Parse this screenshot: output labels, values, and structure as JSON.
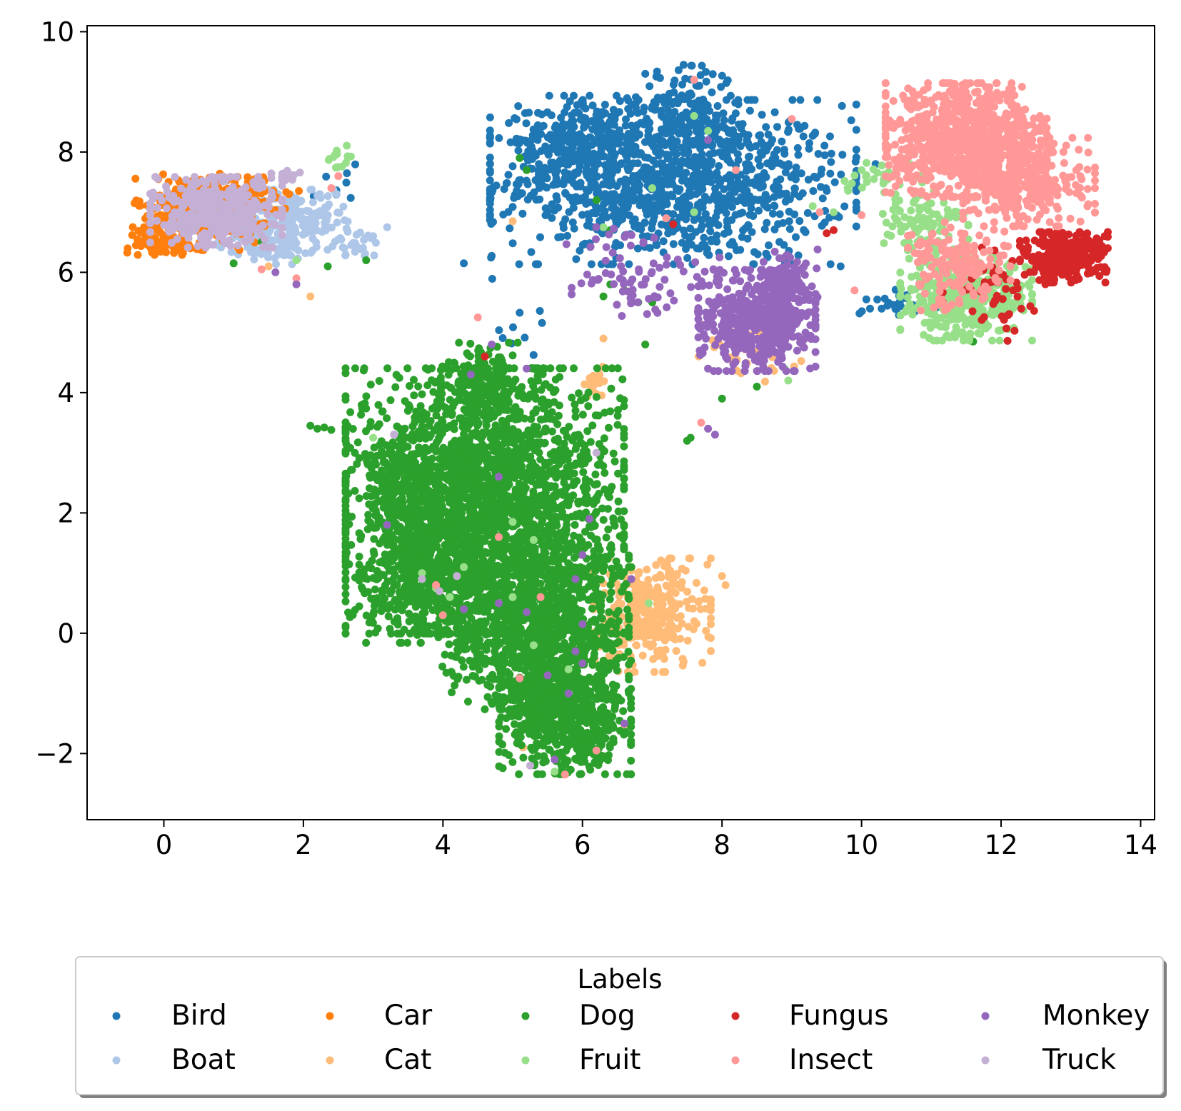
{
  "chart_data": {
    "type": "scatter",
    "title": "",
    "xlabel": "",
    "ylabel": "",
    "xlim": [
      -1.1,
      14.2
    ],
    "ylim": [
      -3.1,
      10.1
    ],
    "xticks": [
      0,
      2,
      4,
      6,
      8,
      10,
      12,
      14
    ],
    "yticks": [
      -2,
      0,
      2,
      4,
      6,
      8,
      10
    ],
    "xtick_labels": [
      "0",
      "2",
      "4",
      "6",
      "8",
      "10",
      "12",
      "14"
    ],
    "ytick_labels": [
      "−2",
      "0",
      "2",
      "4",
      "6",
      "8",
      "10"
    ],
    "grid": false,
    "legend": {
      "title": "Labels",
      "placement": "below plot, centered",
      "columns": 5,
      "entries": [
        "Bird",
        "Boat",
        "Car",
        "Cat",
        "Dog",
        "Fruit",
        "Fungus",
        "Insect",
        "Monkey",
        "Truck"
      ]
    },
    "series": [
      {
        "name": "Bird",
        "color": "#1f77b4",
        "clusters": [
          {
            "cx": 7.3,
            "cy": 7.5,
            "sx": 1.25,
            "sy": 0.65,
            "n": 1100
          },
          {
            "cx": 6.0,
            "cy": 8.2,
            "sx": 0.45,
            "sy": 0.35,
            "n": 250
          },
          {
            "cx": 7.5,
            "cy": 8.7,
            "sx": 0.35,
            "sy": 0.35,
            "n": 150
          },
          {
            "cx": 10.6,
            "cy": 5.5,
            "sx": 0.3,
            "sy": 0.1,
            "n": 25
          },
          {
            "cx": 5.0,
            "cy": 5.2,
            "sx": 0.2,
            "sy": 0.5,
            "n": 10
          },
          {
            "cx": 2.4,
            "cy": 7.4,
            "sx": 0.2,
            "sy": 0.3,
            "n": 8
          }
        ],
        "points": [
          [
            4.3,
            6.15
          ],
          [
            10.9,
            7.75
          ],
          [
            10.2,
            7.8
          ],
          [
            9.7,
            6.1
          ],
          [
            6.9,
            9.3
          ],
          [
            7.45,
            9.45
          ]
        ]
      },
      {
        "name": "Boat",
        "color": "#aec7e8",
        "clusters": [
          {
            "cx": 1.9,
            "cy": 6.85,
            "sx": 0.35,
            "sy": 0.25,
            "n": 180
          },
          {
            "cx": 1.4,
            "cy": 6.45,
            "sx": 0.3,
            "sy": 0.15,
            "n": 60
          },
          {
            "cx": 2.8,
            "cy": 6.45,
            "sx": 0.15,
            "sy": 0.1,
            "n": 25
          }
        ],
        "points": [
          [
            3.2,
            6.75
          ],
          [
            3.0,
            6.6
          ]
        ]
      },
      {
        "name": "Car",
        "color": "#ff7f0e",
        "clusters": [
          {
            "cx": 0.5,
            "cy": 7.0,
            "sx": 0.45,
            "sy": 0.3,
            "n": 300
          },
          {
            "cx": 0.0,
            "cy": 6.5,
            "sx": 0.25,
            "sy": 0.1,
            "n": 60
          },
          {
            "cx": 1.2,
            "cy": 7.35,
            "sx": 0.35,
            "sy": 0.15,
            "n": 60
          }
        ],
        "points": []
      },
      {
        "name": "Cat",
        "color": "#ffbb78",
        "clusters": [
          {
            "cx": 7.0,
            "cy": 0.3,
            "sx": 0.4,
            "sy": 0.45,
            "n": 300
          },
          {
            "cx": 6.2,
            "cy": 4.2,
            "sx": 0.12,
            "sy": 0.15,
            "n": 15
          },
          {
            "cx": 8.4,
            "cy": 4.7,
            "sx": 0.35,
            "sy": 0.25,
            "n": 40
          }
        ],
        "points": [
          [
            8.05,
            0.8
          ],
          [
            8.0,
            0.95
          ],
          [
            6.6,
            -1.55
          ],
          [
            5.15,
            -1.9
          ],
          [
            2.1,
            5.6
          ],
          [
            1.5,
            6.1
          ],
          [
            6.3,
            4.9
          ],
          [
            5.0,
            6.85
          ]
        ]
      },
      {
        "name": "Dog",
        "color": "#2ca02c",
        "clusters": [
          {
            "cx": 4.6,
            "cy": 2.2,
            "sx": 0.95,
            "sy": 1.05,
            "n": 2400
          },
          {
            "cx": 5.3,
            "cy": 0.1,
            "sx": 0.65,
            "sy": 0.65,
            "n": 1000
          },
          {
            "cx": 5.75,
            "cy": -1.4,
            "sx": 0.45,
            "sy": 0.45,
            "n": 650
          },
          {
            "cx": 3.85,
            "cy": 1.1,
            "sx": 0.5,
            "sy": 0.6,
            "n": 500
          },
          {
            "cx": 4.6,
            "cy": 4.2,
            "sx": 0.3,
            "sy": 0.3,
            "n": 150
          },
          {
            "cx": 3.5,
            "cy": 2.6,
            "sx": 0.25,
            "sy": 0.4,
            "n": 120
          }
        ],
        "points": [
          [
            2.1,
            3.45
          ],
          [
            2.3,
            3.42
          ],
          [
            2.2,
            3.4
          ],
          [
            2.4,
            3.38
          ],
          [
            7.5,
            3.2
          ],
          [
            7.55,
            3.25
          ],
          [
            8.0,
            3.9
          ],
          [
            8.5,
            4.1
          ],
          [
            6.3,
            5.6
          ],
          [
            6.6,
            5.7
          ],
          [
            6.4,
            5.8
          ],
          [
            6.8,
            5.5
          ],
          [
            7.0,
            5.5
          ],
          [
            5.1,
            7.9
          ],
          [
            5.2,
            7.7
          ],
          [
            6.2,
            7.2
          ],
          [
            6.4,
            6.7
          ],
          [
            1.0,
            6.15
          ],
          [
            2.9,
            6.2
          ],
          [
            2.35,
            6.1
          ],
          [
            11.6,
            4.85
          ],
          [
            4.8,
            4.5
          ],
          [
            6.9,
            4.8
          ],
          [
            6.7,
            1.1
          ],
          [
            6.5,
            1.1
          ],
          [
            1.4,
            6.5
          ]
        ]
      },
      {
        "name": "Fruit",
        "color": "#98df8a",
        "clusters": [
          {
            "cx": 11.5,
            "cy": 5.6,
            "sx": 0.45,
            "sy": 0.35,
            "n": 400
          },
          {
            "cx": 10.9,
            "cy": 6.8,
            "sx": 0.3,
            "sy": 0.3,
            "n": 100
          },
          {
            "cx": 10.3,
            "cy": 7.6,
            "sx": 0.35,
            "sy": 0.15,
            "n": 35
          },
          {
            "cx": 2.5,
            "cy": 7.9,
            "sx": 0.1,
            "sy": 0.1,
            "n": 15
          }
        ],
        "points": [
          [
            9.3,
            7.1
          ],
          [
            9.6,
            7.0
          ],
          [
            9.8,
            7.4
          ],
          [
            8.9,
            4.4
          ],
          [
            8.95,
            4.2
          ],
          [
            7.0,
            7.4
          ],
          [
            7.6,
            8.6
          ],
          [
            7.8,
            8.35
          ],
          [
            7.6,
            7.0
          ],
          [
            6.3,
            6.75
          ],
          [
            5.3,
            1.55
          ],
          [
            5.0,
            1.85
          ],
          [
            4.3,
            1.1
          ],
          [
            3.7,
            1.0
          ],
          [
            4.1,
            0.6
          ],
          [
            5.3,
            -0.2
          ],
          [
            5.6,
            -2.3
          ],
          [
            5.8,
            -0.6
          ],
          [
            6.95,
            0.5
          ],
          [
            5.0,
            0.6
          ],
          [
            1.9,
            6.2
          ],
          [
            3.0,
            3.25
          ],
          [
            3.9,
            0.75
          ]
        ]
      },
      {
        "name": "Fungus",
        "color": "#d62728",
        "clusters": [
          {
            "cx": 12.9,
            "cy": 6.25,
            "sx": 0.3,
            "sy": 0.2,
            "n": 300
          },
          {
            "cx": 11.9,
            "cy": 5.6,
            "sx": 0.35,
            "sy": 0.4,
            "n": 50
          }
        ],
        "points": [
          [
            4.6,
            4.6
          ],
          [
            7.3,
            6.8
          ],
          [
            3.9,
            0.8
          ],
          [
            3.95,
            0.7
          ],
          [
            9.5,
            6.65
          ],
          [
            9.6,
            6.7
          ]
        ]
      },
      {
        "name": "Insect",
        "color": "#ff9896",
        "clusters": [
          {
            "cx": 11.5,
            "cy": 8.2,
            "sx": 0.55,
            "sy": 0.45,
            "n": 900
          },
          {
            "cx": 12.4,
            "cy": 7.5,
            "sx": 0.45,
            "sy": 0.35,
            "n": 300
          },
          {
            "cx": 11.4,
            "cy": 6.1,
            "sx": 0.35,
            "sy": 0.35,
            "n": 160
          }
        ],
        "points": [
          [
            7.6,
            9.2
          ],
          [
            7.2,
            6.9
          ],
          [
            9.0,
            8.55
          ],
          [
            8.2,
            7.7
          ],
          [
            9.4,
            7.0
          ],
          [
            10.0,
            6.95
          ],
          [
            1.4,
            6.05
          ],
          [
            1.9,
            5.9
          ],
          [
            4.5,
            5.25
          ],
          [
            4.8,
            1.6
          ],
          [
            3.9,
            0.8
          ],
          [
            4.0,
            0.3
          ],
          [
            5.4,
            0.6
          ],
          [
            5.1,
            -0.75
          ],
          [
            6.2,
            -1.95
          ],
          [
            5.75,
            -2.35
          ],
          [
            7.7,
            3.5
          ],
          [
            9.9,
            5.7
          ],
          [
            2.4,
            7.4
          ],
          [
            2.5,
            7.6
          ]
        ]
      },
      {
        "name": "Monkey",
        "color": "#9467bd",
        "clusters": [
          {
            "cx": 8.5,
            "cy": 5.2,
            "sx": 0.4,
            "sy": 0.4,
            "n": 450
          },
          {
            "cx": 8.95,
            "cy": 5.75,
            "sx": 0.2,
            "sy": 0.3,
            "n": 120
          },
          {
            "cx": 7.0,
            "cy": 5.8,
            "sx": 0.55,
            "sy": 0.25,
            "n": 70
          },
          {
            "cx": 6.4,
            "cy": 6.55,
            "sx": 0.3,
            "sy": 0.15,
            "n": 15
          }
        ],
        "points": [
          [
            4.8,
            2.6
          ],
          [
            3.2,
            1.8
          ],
          [
            6.1,
            1.9
          ],
          [
            6.0,
            1.3
          ],
          [
            5.9,
            0.9
          ],
          [
            4.8,
            0.5
          ],
          [
            5.2,
            0.35
          ],
          [
            4.3,
            0.4
          ],
          [
            5.9,
            -0.3
          ],
          [
            6.0,
            -0.5
          ],
          [
            5.5,
            -0.7
          ],
          [
            5.6,
            -2.1
          ],
          [
            5.8,
            -1.0
          ],
          [
            6.6,
            -1.5
          ],
          [
            6.7,
            0.9
          ],
          [
            6.0,
            0.15
          ],
          [
            1.9,
            5.8
          ],
          [
            1.6,
            6.0
          ],
          [
            4.7,
            4.8
          ],
          [
            5.2,
            4.4
          ],
          [
            4.4,
            4.3
          ],
          [
            3.3,
            3.3
          ],
          [
            7.8,
            3.4
          ],
          [
            7.9,
            3.3
          ],
          [
            7.8,
            4.4
          ],
          [
            7.8,
            8.2
          ]
        ]
      },
      {
        "name": "Truck",
        "color": "#c5b0d5",
        "clusters": [
          {
            "cx": 0.75,
            "cy": 7.0,
            "sx": 0.45,
            "sy": 0.28,
            "n": 400
          },
          {
            "cx": 1.75,
            "cy": 7.6,
            "sx": 0.1,
            "sy": 0.06,
            "n": 15
          }
        ],
        "points": [
          [
            3.7,
            0.9
          ],
          [
            3.95,
            0.7
          ],
          [
            5.25,
            -2.2
          ],
          [
            3.3,
            3.3
          ],
          [
            4.2,
            0.95
          ],
          [
            6.2,
            3.0
          ]
        ]
      }
    ]
  }
}
